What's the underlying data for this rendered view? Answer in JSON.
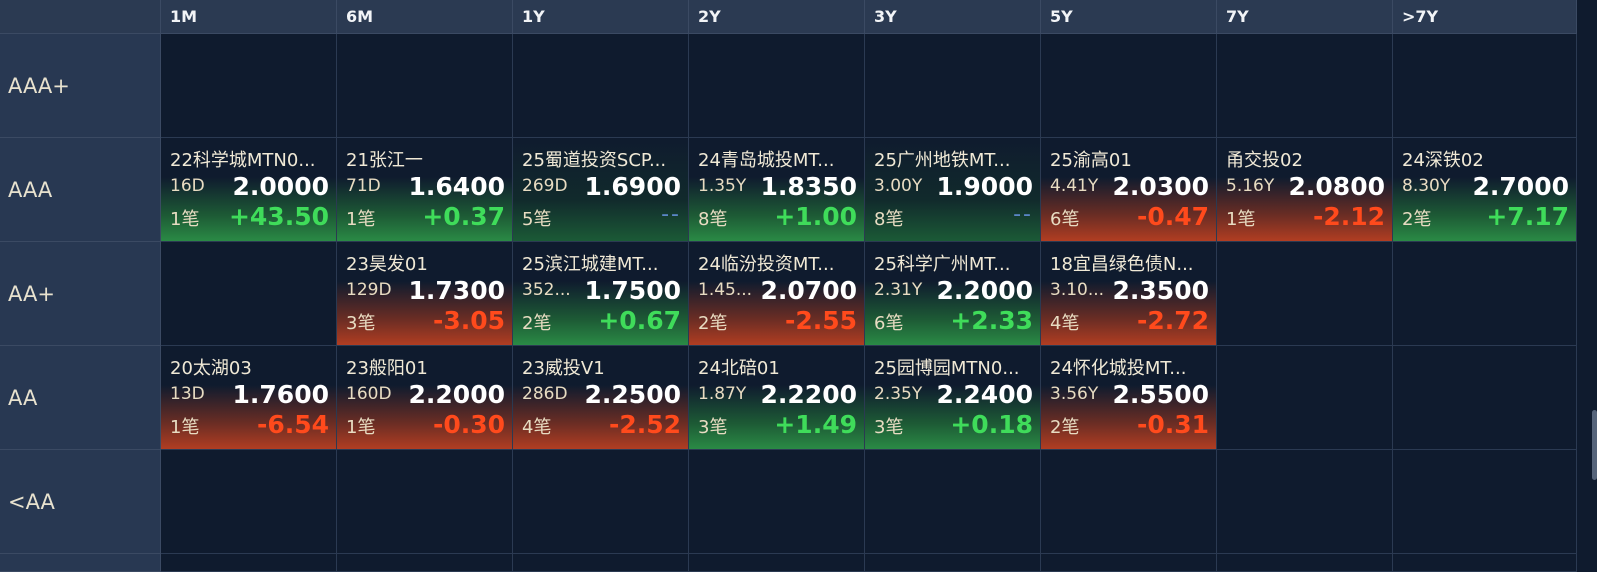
{
  "columns": [
    "1M",
    "6M",
    "1Y",
    "2Y",
    "3Y",
    "5Y",
    "7Y",
    ">7Y"
  ],
  "rows": [
    {
      "label": "AAA+",
      "cells": [
        null,
        null,
        null,
        null,
        null,
        null,
        null,
        null
      ]
    },
    {
      "label": "AAA",
      "cells": [
        {
          "name": "22科学城MTN0...",
          "tenor": "16D",
          "rate": "2.0000",
          "count": "1笔",
          "change": "+43.50",
          "dir": "up"
        },
        {
          "name": "21张江一",
          "tenor": "71D",
          "rate": "1.6400",
          "count": "1笔",
          "change": "+0.37",
          "dir": "up"
        },
        {
          "name": "25蜀道投资SCP...",
          "tenor": "269D",
          "rate": "1.6900",
          "count": "5笔",
          "change": "--",
          "dir": "none"
        },
        {
          "name": "24青岛城投MT...",
          "tenor": "1.35Y",
          "rate": "1.8350",
          "count": "8笔",
          "change": "+1.00",
          "dir": "up"
        },
        {
          "name": "25广州地铁MT...",
          "tenor": "3.00Y",
          "rate": "1.9000",
          "count": "8笔",
          "change": "--",
          "dir": "none"
        },
        {
          "name": "25渝高01",
          "tenor": "4.41Y",
          "rate": "2.0300",
          "count": "6笔",
          "change": "-0.47",
          "dir": "down"
        },
        {
          "name": "甬交投02",
          "tenor": "5.16Y",
          "rate": "2.0800",
          "count": "1笔",
          "change": "-2.12",
          "dir": "down"
        },
        {
          "name": "24深铁02",
          "tenor": "8.30Y",
          "rate": "2.7000",
          "count": "2笔",
          "change": "+7.17",
          "dir": "up"
        }
      ]
    },
    {
      "label": "AA+",
      "cells": [
        null,
        {
          "name": "23昊发01",
          "tenor": "129D",
          "rate": "1.7300",
          "count": "3笔",
          "change": "-3.05",
          "dir": "down"
        },
        {
          "name": "25滨江城建MT...",
          "tenor": "352...",
          "rate": "1.7500",
          "count": "2笔",
          "change": "+0.67",
          "dir": "up"
        },
        {
          "name": "24临汾投资MT...",
          "tenor": "1.45...",
          "rate": "2.0700",
          "count": "2笔",
          "change": "-2.55",
          "dir": "down"
        },
        {
          "name": "25科学广州MT...",
          "tenor": "2.31Y",
          "rate": "2.2000",
          "count": "6笔",
          "change": "+2.33",
          "dir": "up"
        },
        {
          "name": "18宜昌绿色债N...",
          "tenor": "3.10...",
          "rate": "2.3500",
          "count": "4笔",
          "change": "-2.72",
          "dir": "down"
        },
        null,
        null
      ]
    },
    {
      "label": "AA",
      "cells": [
        {
          "name": "20太湖03",
          "tenor": "13D",
          "rate": "1.7600",
          "count": "1笔",
          "change": "-6.54",
          "dir": "down"
        },
        {
          "name": "23般阳01",
          "tenor": "160D",
          "rate": "2.2000",
          "count": "1笔",
          "change": "-0.30",
          "dir": "down"
        },
        {
          "name": "23威投V1",
          "tenor": "286D",
          "rate": "2.2500",
          "count": "4笔",
          "change": "-2.52",
          "dir": "down"
        },
        {
          "name": "24北碚01",
          "tenor": "1.87Y",
          "rate": "2.2200",
          "count": "3笔",
          "change": "+1.49",
          "dir": "up"
        },
        {
          "name": "25园博园MTN0...",
          "tenor": "2.35Y",
          "rate": "2.2400",
          "count": "3笔",
          "change": "+0.18",
          "dir": "up"
        },
        {
          "name": "24怀化城投MT...",
          "tenor": "3.56Y",
          "rate": "2.5500",
          "count": "2笔",
          "change": "-0.31",
          "dir": "down"
        },
        null,
        null
      ]
    },
    {
      "label": "<AA",
      "cells": [
        null,
        null,
        null,
        null,
        null,
        null,
        null,
        null
      ]
    }
  ],
  "colors": {
    "up": "#3fdc5a",
    "down": "#ff4a1c",
    "flat": "#5b86c7",
    "header_bg": "#2b3a52",
    "bg": "#0f1b2e"
  }
}
